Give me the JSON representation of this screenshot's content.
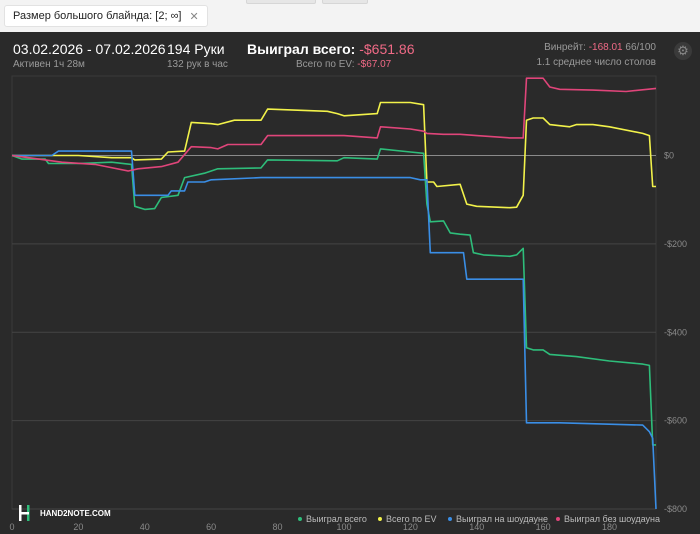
{
  "filter": {
    "label": "Размер большого блайнда: [2; ∞]",
    "close_icon": "close-icon"
  },
  "header": {
    "date_range": "03.02.2026 - 07.02.2026",
    "active": "Активен 1ч 28м",
    "hands": "194 Руки",
    "hands_per_hour": "132 рук в час",
    "won_total_label": "Выиграл всего:",
    "won_total_value": "-$651.86",
    "ev_label": "Всего по EV:",
    "ev_value": "-$67.07",
    "winrate_label": "Винрейт:",
    "winrate_value": "-168.01",
    "winrate_count": "66/100",
    "avg_tables": "1.1 среднее число столов",
    "settings_icon": "gear-icon"
  },
  "brand": {
    "logo_text": "HAND2NOTE.COM"
  },
  "colors": {
    "won": "#2ebd7a",
    "ev": "#f2f24a",
    "showdown": "#3a8ee6",
    "non_showdown": "#e0457a"
  },
  "chart_data": {
    "type": "line",
    "xlim": [
      0,
      194
    ],
    "ylim": [
      -800,
      180
    ],
    "x_ticks": [
      0,
      20,
      40,
      60,
      80,
      100,
      120,
      140,
      160,
      180
    ],
    "x_tick_labels": [
      "0",
      "20",
      "40",
      "60",
      "80",
      "100",
      "120",
      "140",
      "160",
      "180"
    ],
    "y_ticks": [
      0,
      -200,
      -400,
      -600,
      -800
    ],
    "y_tick_labels": [
      "$0",
      "-$200",
      "-$400",
      "-$600",
      "-$800"
    ],
    "grid": true,
    "legend_position": "bottom-right",
    "series": [
      {
        "name": "Выиграл всего",
        "color_key": "won",
        "points": [
          [
            0,
            0
          ],
          [
            3,
            -8
          ],
          [
            10,
            -8
          ],
          [
            11,
            -18
          ],
          [
            20,
            -18
          ],
          [
            30,
            -15
          ],
          [
            36,
            -20
          ],
          [
            37,
            -115
          ],
          [
            40,
            -122
          ],
          [
            43,
            -120
          ],
          [
            45,
            -95
          ],
          [
            50,
            -90
          ],
          [
            52,
            -50
          ],
          [
            58,
            -40
          ],
          [
            60,
            -35
          ],
          [
            62,
            -30
          ],
          [
            75,
            -28
          ],
          [
            77,
            -10
          ],
          [
            98,
            -12
          ],
          [
            100,
            -5
          ],
          [
            110,
            -8
          ],
          [
            111,
            15
          ],
          [
            120,
            8
          ],
          [
            124,
            5
          ],
          [
            125,
            -110
          ],
          [
            126,
            -150
          ],
          [
            130,
            -148
          ],
          [
            132,
            -175
          ],
          [
            135,
            -178
          ],
          [
            138,
            -180
          ],
          [
            139,
            -220
          ],
          [
            142,
            -225
          ],
          [
            150,
            -228
          ],
          [
            152,
            -225
          ],
          [
            154,
            -210
          ],
          [
            155,
            -435
          ],
          [
            157,
            -440
          ],
          [
            160,
            -440
          ],
          [
            162,
            -450
          ],
          [
            170,
            -455
          ],
          [
            180,
            -465
          ],
          [
            190,
            -472
          ],
          [
            192,
            -475
          ],
          [
            193,
            -655
          ],
          [
            194,
            -655
          ]
        ]
      },
      {
        "name": "Всего по EV",
        "color_key": "ev",
        "points": [
          [
            0,
            0
          ],
          [
            10,
            0
          ],
          [
            20,
            0
          ],
          [
            30,
            -5
          ],
          [
            36,
            -5
          ],
          [
            37,
            -10
          ],
          [
            45,
            -8
          ],
          [
            47,
            8
          ],
          [
            52,
            10
          ],
          [
            54,
            75
          ],
          [
            60,
            72
          ],
          [
            62,
            70
          ],
          [
            67,
            80
          ],
          [
            75,
            80
          ],
          [
            77,
            105
          ],
          [
            95,
            100
          ],
          [
            98,
            95
          ],
          [
            100,
            90
          ],
          [
            110,
            95
          ],
          [
            111,
            120
          ],
          [
            120,
            120
          ],
          [
            124,
            115
          ],
          [
            125,
            -60
          ],
          [
            127,
            -60
          ],
          [
            128,
            -70
          ],
          [
            135,
            -65
          ],
          [
            137,
            -110
          ],
          [
            140,
            -115
          ],
          [
            150,
            -118
          ],
          [
            152,
            -117
          ],
          [
            154,
            -90
          ],
          [
            155,
            80
          ],
          [
            157,
            85
          ],
          [
            160,
            85
          ],
          [
            162,
            70
          ],
          [
            168,
            65
          ],
          [
            170,
            70
          ],
          [
            175,
            70
          ],
          [
            180,
            65
          ],
          [
            190,
            50
          ],
          [
            192,
            45
          ],
          [
            193,
            -70
          ],
          [
            194,
            -70
          ]
        ]
      },
      {
        "name": "Выиграл на шоудауне",
        "color_key": "showdown",
        "points": [
          [
            0,
            0
          ],
          [
            12,
            0
          ],
          [
            14,
            10
          ],
          [
            36,
            10
          ],
          [
            37,
            -90
          ],
          [
            47,
            -90
          ],
          [
            48,
            -80
          ],
          [
            52,
            -80
          ],
          [
            53,
            -60
          ],
          [
            58,
            -60
          ],
          [
            60,
            -55
          ],
          [
            75,
            -50
          ],
          [
            95,
            -50
          ],
          [
            100,
            -50
          ],
          [
            120,
            -50
          ],
          [
            123,
            -55
          ],
          [
            125,
            -55
          ],
          [
            126,
            -220
          ],
          [
            136,
            -220
          ],
          [
            137,
            -280
          ],
          [
            152,
            -280
          ],
          [
            154,
            -280
          ],
          [
            155,
            -605
          ],
          [
            165,
            -605
          ],
          [
            190,
            -610
          ],
          [
            192,
            -625
          ],
          [
            193,
            -640
          ],
          [
            194,
            -800
          ]
        ]
      },
      {
        "name": "Выиграл без шоудауна",
        "color_key": "non_showdown",
        "points": [
          [
            0,
            0
          ],
          [
            5,
            -5
          ],
          [
            15,
            -15
          ],
          [
            25,
            -20
          ],
          [
            35,
            -35
          ],
          [
            38,
            -30
          ],
          [
            45,
            -25
          ],
          [
            50,
            -15
          ],
          [
            54,
            20
          ],
          [
            60,
            18
          ],
          [
            62,
            15
          ],
          [
            65,
            25
          ],
          [
            75,
            25
          ],
          [
            77,
            45
          ],
          [
            98,
            45
          ],
          [
            100,
            45
          ],
          [
            110,
            40
          ],
          [
            111,
            65
          ],
          [
            120,
            60
          ],
          [
            124,
            55
          ],
          [
            125,
            50
          ],
          [
            130,
            48
          ],
          [
            135,
            48
          ],
          [
            140,
            45
          ],
          [
            150,
            40
          ],
          [
            154,
            40
          ],
          [
            155,
            175
          ],
          [
            160,
            175
          ],
          [
            162,
            155
          ],
          [
            165,
            150
          ],
          [
            175,
            148
          ],
          [
            185,
            145
          ],
          [
            194,
            152
          ]
        ]
      }
    ]
  }
}
